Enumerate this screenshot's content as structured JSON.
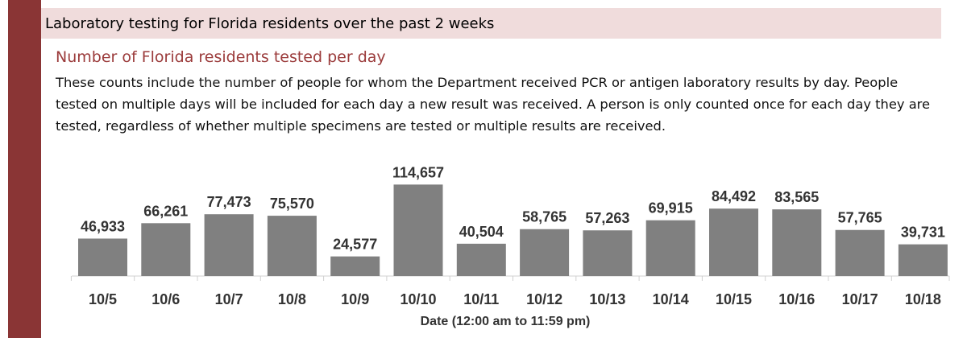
{
  "header": {
    "title": "Laboratory testing for Florida residents over the past 2 weeks"
  },
  "section": {
    "subtitle": "Number of Florida residents tested per day",
    "description": "These counts include the number of people for whom the Department received PCR or antigen laboratory results by day. People tested on multiple days will be included for each day a new result was received. A person is only counted once for each day they are tested, regardless of whether multiple specimens are tested or multiple results are received."
  },
  "colors": {
    "accent": "#8a3535",
    "header_bg": "#f0dcdc",
    "subtitle": "#9b3b3b",
    "bar": "#808080"
  },
  "chart_data": {
    "type": "bar",
    "title": "",
    "xlabel": "Date (12:00 am to 11:59 pm)",
    "ylabel": "",
    "categories": [
      "10/5",
      "10/6",
      "10/7",
      "10/8",
      "10/9",
      "10/10",
      "10/11",
      "10/12",
      "10/13",
      "10/14",
      "10/15",
      "10/16",
      "10/17",
      "10/18"
    ],
    "values": [
      46933,
      66261,
      77473,
      75570,
      24577,
      114657,
      40504,
      58765,
      57263,
      69915,
      84492,
      83565,
      57765,
      39731
    ],
    "value_labels": [
      "46,933",
      "66,261",
      "77,473",
      "75,570",
      "24,577",
      "114,657",
      "40,504",
      "58,765",
      "57,263",
      "69,915",
      "84,492",
      "83,565",
      "57,765",
      "39,731"
    ],
    "ylim": [
      0,
      115000
    ],
    "grid": false,
    "legend": "none"
  }
}
